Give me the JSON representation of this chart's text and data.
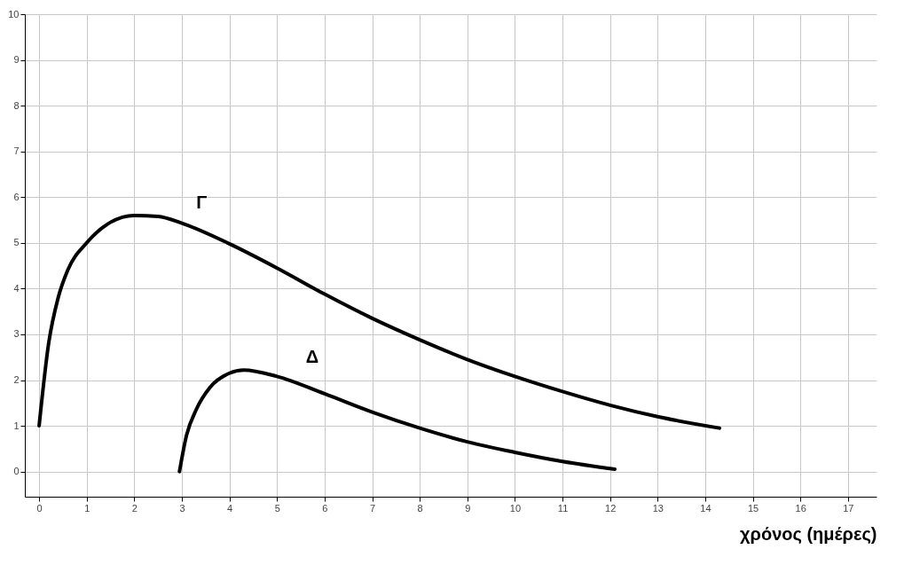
{
  "chart_data": {
    "type": "line",
    "xlabel": "χρόνος (ημέρες)",
    "xlim": [
      -0.3,
      17.6
    ],
    "ylim": [
      -0.55,
      10
    ],
    "xticks": [
      0,
      1,
      2,
      3,
      4,
      5,
      6,
      7,
      8,
      9,
      10,
      11,
      12,
      13,
      14,
      15,
      16,
      17
    ],
    "yticks": [
      0,
      1,
      2,
      3,
      4,
      5,
      6,
      7,
      8,
      9,
      10
    ],
    "grid": true,
    "marker": "none",
    "line_style": "solid",
    "series": [
      {
        "name": "Γ",
        "color": "#000000",
        "x": [
          0,
          0.2,
          0.4,
          0.6,
          1,
          1.5,
          2,
          2.5,
          3,
          4,
          5,
          6,
          7,
          8,
          9,
          10,
          11,
          12,
          13,
          14.3
        ],
        "values": [
          1,
          2.8,
          3.8,
          4.4,
          5.0,
          5.45,
          5.6,
          5.58,
          5.43,
          4.98,
          4.45,
          3.88,
          3.35,
          2.88,
          2.45,
          2.08,
          1.75,
          1.45,
          1.2,
          0.95
        ]
      },
      {
        "name": "Δ",
        "color": "#000000",
        "x": [
          2.95,
          3.1,
          3.3,
          3.6,
          4,
          4.3,
          5,
          6,
          7,
          8,
          9,
          10,
          11,
          12.1
        ],
        "values": [
          0,
          0.8,
          1.35,
          1.85,
          2.15,
          2.22,
          2.08,
          1.7,
          1.3,
          0.95,
          0.65,
          0.42,
          0.22,
          0.05
        ]
      }
    ]
  }
}
